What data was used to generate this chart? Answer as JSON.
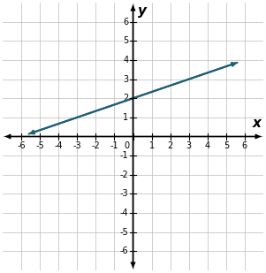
{
  "xlim": [
    -7,
    7
  ],
  "ylim": [
    -7,
    7
  ],
  "xticks": [
    -6,
    -5,
    -4,
    -3,
    -2,
    -1,
    0,
    1,
    2,
    3,
    4,
    5,
    6
  ],
  "yticks": [
    -6,
    -5,
    -4,
    -3,
    -2,
    -1,
    1,
    2,
    3,
    4,
    5,
    6
  ],
  "xlabel": "x",
  "ylabel": "y",
  "line_color": "#1f5f75",
  "line_width": 1.5,
  "background_color": "#ffffff",
  "grid_color": "#bbbbbb",
  "axis_color": "#000000",
  "tick_fontsize": 7,
  "label_fontsize": 11,
  "slope": 0.3333333,
  "intercept": 2.0,
  "line_x1": -5.6,
  "line_x2": 5.6
}
